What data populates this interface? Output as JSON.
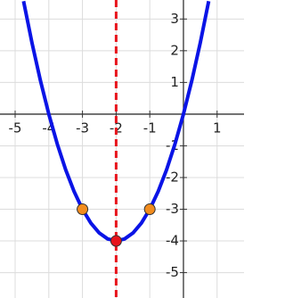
{
  "chart_data": {
    "type": "line",
    "xlim": [
      -5.45,
      1.8
    ],
    "ylim": [
      -5.8,
      3.6
    ],
    "xticks": [
      -5,
      -4,
      -3,
      -2,
      -1,
      1
    ],
    "yticks": [
      -5,
      -4,
      -3,
      -2,
      -1,
      1,
      2,
      3
    ],
    "grid": true,
    "series": [
      {
        "color": "#0a14e6",
        "x": [
          -4.75,
          -4.5,
          -4.25,
          -4,
          -3.75,
          -3.5,
          -3.25,
          -3,
          -2.75,
          -2.5,
          -2.25,
          -2,
          -1.75,
          -1.5,
          -1.25,
          -1,
          -0.75,
          -0.5,
          -0.25,
          0,
          0.25,
          0.5,
          0.75
        ],
        "values": [
          3.5625,
          2.25,
          1.0625,
          0,
          -0.9375,
          -1.75,
          -2.4375,
          -3,
          -3.4375,
          -3.75,
          -3.9375,
          -4,
          -3.9375,
          -3.75,
          -3.4375,
          -3,
          -2.4375,
          -1.75,
          -0.9375,
          0,
          1.0625,
          2.25,
          3.5625
        ]
      }
    ],
    "points": [
      {
        "x": -3,
        "y": -3,
        "color": "#f28c1e"
      },
      {
        "x": -1,
        "y": -3,
        "color": "#f28c1e"
      },
      {
        "x": -2,
        "y": -4,
        "color": "#e8141c"
      }
    ],
    "vline": {
      "x": -2,
      "color": "#e8141c"
    }
  }
}
